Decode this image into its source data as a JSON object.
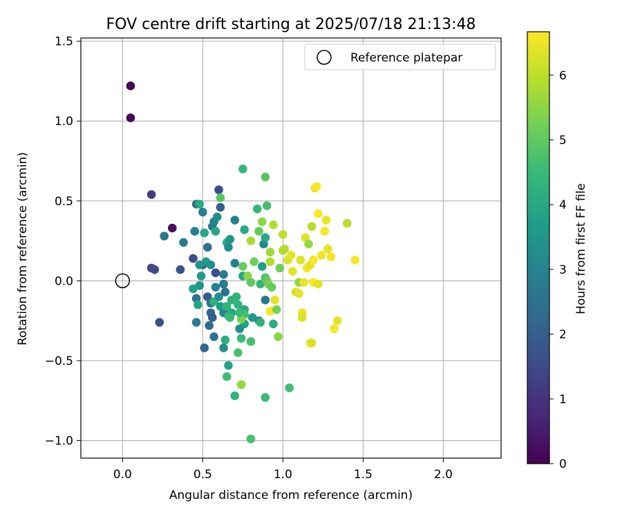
{
  "chart_data": {
    "type": "scatter",
    "title": "FOV centre drift starting at 2025/07/18 21:13:48",
    "xlabel": "Angular distance from reference (arcmin)",
    "ylabel": "Rotation from reference (arcmin)",
    "xlim": [
      -0.26,
      2.36
    ],
    "ylim": [
      -1.11,
      1.52
    ],
    "xticks": [
      0.0,
      0.5,
      1.0,
      1.5,
      2.0
    ],
    "xtick_labels": [
      "0.0",
      "0.5",
      "1.0",
      "1.5",
      "2.0"
    ],
    "yticks": [
      -1.0,
      -0.5,
      0.0,
      0.5,
      1.0,
      1.5
    ],
    "ytick_labels": [
      "−1.0",
      "−0.5",
      "0.0",
      "0.5",
      "1.0",
      "1.5"
    ],
    "grid": true,
    "legend": {
      "placement": "top-right",
      "entries": [
        "Reference platepar"
      ]
    },
    "reference_point": {
      "label": "Reference platepar",
      "x": 0.0,
      "y": 0.0
    },
    "colorbar": {
      "label": "Hours from first FF file",
      "min": 0,
      "max": 6.67,
      "ticks": [
        0,
        1,
        2,
        3,
        4,
        5,
        6
      ],
      "tick_labels": [
        "0",
        "1",
        "2",
        "3",
        "4",
        "5",
        "6"
      ],
      "colormap": "viridis",
      "colormap_stops": [
        "#440154",
        "#482878",
        "#3e4989",
        "#31688e",
        "#26828e",
        "#1f9e89",
        "#35b779",
        "#6ece58",
        "#b5de2b",
        "#fde725"
      ]
    },
    "series": [
      {
        "points": [
          [
            0.05,
            1.22,
            0.0
          ],
          [
            0.05,
            1.02,
            0.1
          ],
          [
            0.31,
            0.33,
            0.3
          ],
          [
            0.18,
            0.54,
            1.2
          ],
          [
            0.18,
            0.08,
            1.4
          ],
          [
            0.2,
            0.07,
            1.5
          ],
          [
            0.23,
            -0.26,
            1.6
          ],
          [
            0.26,
            0.28,
            2.6
          ],
          [
            0.36,
            0.07,
            1.7
          ],
          [
            0.38,
            0.24,
            2.8
          ],
          [
            0.44,
            0.14,
            1.5
          ],
          [
            0.45,
            0.31,
            2.9
          ],
          [
            0.46,
            0.48,
            2.4
          ],
          [
            0.48,
            0.48,
            4.1
          ],
          [
            0.5,
            0.43,
            3.0
          ],
          [
            0.53,
            0.21,
            2.5
          ],
          [
            0.56,
            0.34,
            2.6
          ],
          [
            0.57,
            0.37,
            2.9
          ],
          [
            0.58,
            0.31,
            3.9
          ],
          [
            0.59,
            0.4,
            3.2
          ],
          [
            0.6,
            0.57,
            1.6
          ],
          [
            0.61,
            0.46,
            2.0
          ],
          [
            0.61,
            0.52,
            4.9
          ],
          [
            0.5,
            0.1,
            2.0
          ],
          [
            0.52,
            0.12,
            3.7
          ],
          [
            0.55,
            0.1,
            3.3
          ],
          [
            0.58,
            0.05,
            1.5
          ],
          [
            0.48,
            0.1,
            3.4
          ],
          [
            0.49,
            0.03,
            3.6
          ],
          [
            0.51,
            0.3,
            3.9
          ],
          [
            0.44,
            -0.05,
            3.8
          ],
          [
            0.46,
            -0.11,
            2.5
          ],
          [
            0.47,
            -0.15,
            3.9
          ],
          [
            0.46,
            -0.26,
            2.7
          ],
          [
            0.48,
            -0.03,
            3.5
          ],
          [
            0.51,
            -0.42,
            2.3
          ],
          [
            0.53,
            -0.1,
            1.9
          ],
          [
            0.55,
            -0.14,
            2.6
          ],
          [
            0.55,
            -0.2,
            2.2
          ],
          [
            0.56,
            -0.23,
            2.0
          ],
          [
            0.54,
            -0.28,
            2.3
          ],
          [
            0.57,
            -0.35,
            2.5
          ],
          [
            0.58,
            -0.04,
            2.9
          ],
          [
            0.57,
            -0.13,
            4.3
          ],
          [
            0.6,
            -0.1,
            3.3
          ],
          [
            0.61,
            -0.16,
            3.7
          ],
          [
            0.63,
            -0.02,
            2.7
          ],
          [
            0.63,
            0.04,
            2.8
          ],
          [
            0.64,
            -0.07,
            2.5
          ],
          [
            0.63,
            -0.2,
            3.1
          ],
          [
            0.63,
            -0.42,
            3.4
          ],
          [
            0.64,
            -0.37,
            4.2
          ],
          [
            0.65,
            -0.16,
            4.4
          ],
          [
            0.66,
            -0.22,
            4.3
          ],
          [
            0.65,
            0.24,
            4.1
          ],
          [
            0.67,
            0.26,
            3.5
          ],
          [
            0.66,
            0.21,
            3.3
          ],
          [
            0.68,
            -0.12,
            4.3
          ],
          [
            0.68,
            -0.2,
            4.0
          ],
          [
            0.67,
            -0.23,
            4.5
          ],
          [
            0.66,
            -0.53,
            3.9
          ],
          [
            0.65,
            -0.6,
            4.6
          ],
          [
            0.7,
            0.38,
            2.9
          ],
          [
            0.7,
            0.11,
            3.0
          ],
          [
            0.71,
            -0.1,
            4.3
          ],
          [
            0.72,
            -0.15,
            4.4
          ],
          [
            0.73,
            -0.3,
            3.2
          ],
          [
            0.72,
            -0.45,
            4.7
          ],
          [
            0.74,
            -0.36,
            4.5
          ],
          [
            0.7,
            -0.72,
            4.3
          ],
          [
            0.74,
            -0.65,
            3.9
          ],
          [
            0.74,
            -0.65,
            5.6
          ],
          [
            0.75,
            0.09,
            5.1
          ],
          [
            0.75,
            0.03,
            3.9
          ],
          [
            0.76,
            -0.18,
            4.0
          ],
          [
            0.76,
            -0.21,
            4.6
          ],
          [
            0.76,
            -0.27,
            3.8
          ],
          [
            0.74,
            -0.24,
            5.3
          ],
          [
            0.73,
            -0.2,
            4.5
          ],
          [
            0.78,
            0.03,
            5.5
          ],
          [
            0.8,
            -0.01,
            5.0
          ],
          [
            0.81,
            -0.23,
            3.6
          ],
          [
            0.8,
            -0.38,
            4.7
          ],
          [
            0.8,
            0.25,
            5.8
          ],
          [
            0.75,
            0.7,
            4.4
          ],
          [
            0.76,
            0.32,
            4.0
          ],
          [
            0.8,
            -0.99,
            4.7
          ],
          [
            0.82,
            0.12,
            5.2
          ],
          [
            0.84,
            0.45,
            4.4
          ],
          [
            0.85,
            0.31,
            5.1
          ],
          [
            0.85,
            -0.25,
            3.1
          ],
          [
            0.86,
            -0.02,
            4.4
          ],
          [
            0.87,
            0.09,
            3.7
          ],
          [
            0.87,
            0.37,
            5.5
          ],
          [
            0.86,
            -0.26,
            4.3
          ],
          [
            0.88,
            0.23,
            3.2
          ],
          [
            0.89,
            0.65,
            4.9
          ],
          [
            0.89,
            0.27,
            4.0
          ],
          [
            0.89,
            -0.12,
            2.7
          ],
          [
            0.89,
            0.02,
            4.8
          ],
          [
            0.89,
            -0.73,
            4.5
          ],
          [
            0.9,
            0.0,
            5.0
          ],
          [
            0.9,
            0.47,
            4.7
          ],
          [
            0.91,
            -0.02,
            5.3
          ],
          [
            0.92,
            0.12,
            5.9
          ],
          [
            0.92,
            0.18,
            5.7
          ],
          [
            0.92,
            -0.19,
            6.6
          ],
          [
            0.93,
            -0.04,
            5.1
          ],
          [
            0.94,
            -0.27,
            4.1
          ],
          [
            0.95,
            -0.12,
            6.4
          ],
          [
            0.94,
            0.35,
            5.9
          ],
          [
            0.96,
            -0.18,
            5.3
          ],
          [
            0.97,
            -0.35,
            5.5
          ],
          [
            0.98,
            0.08,
            5.2
          ],
          [
            1.0,
            0.19,
            5.8
          ],
          [
            1.0,
            0.29,
            6.0
          ],
          [
            1.01,
            0.2,
            5.9
          ],
          [
            1.03,
            0.13,
            6.3
          ],
          [
            1.04,
            -0.67,
            4.6
          ],
          [
            1.05,
            0.16,
            6.4
          ],
          [
            1.06,
            0.06,
            6.4
          ],
          [
            1.08,
            -0.07,
            6.3
          ],
          [
            1.1,
            -0.08,
            6.4
          ],
          [
            1.1,
            -0.01,
            5.6
          ],
          [
            1.11,
            0.13,
            6.3
          ],
          [
            1.12,
            -0.2,
            6.5
          ],
          [
            1.12,
            -0.23,
            6.3
          ],
          [
            1.13,
            -0.01,
            6.5
          ],
          [
            1.14,
            0.27,
            6.3
          ],
          [
            1.15,
            0.08,
            6.6
          ],
          [
            1.16,
            0.23,
            5.6
          ],
          [
            1.17,
            0.1,
            6.4
          ],
          [
            1.17,
            -0.39,
            6.5
          ],
          [
            1.18,
            0.34,
            5.9
          ],
          [
            1.18,
            -0.39,
            6.3
          ],
          [
            1.19,
            0.13,
            6.6
          ],
          [
            1.19,
            -0.01,
            6.6
          ],
          [
            1.2,
            0.58,
            6.4
          ],
          [
            1.21,
            0.59,
            6.6
          ],
          [
            1.22,
            0.42,
            6.6
          ],
          [
            1.22,
            -0.02,
            6.4
          ],
          [
            1.24,
            0.16,
            6.5
          ],
          [
            1.26,
            0.31,
            6.6
          ],
          [
            1.27,
            0.38,
            6.5
          ],
          [
            1.28,
            0.2,
            6.4
          ],
          [
            1.3,
            0.15,
            6.6
          ],
          [
            1.32,
            -0.3,
            6.6
          ],
          [
            1.34,
            -0.25,
            6.4
          ],
          [
            1.4,
            0.36,
            6.0
          ],
          [
            1.45,
            0.13,
            6.6
          ]
        ]
      }
    ]
  }
}
